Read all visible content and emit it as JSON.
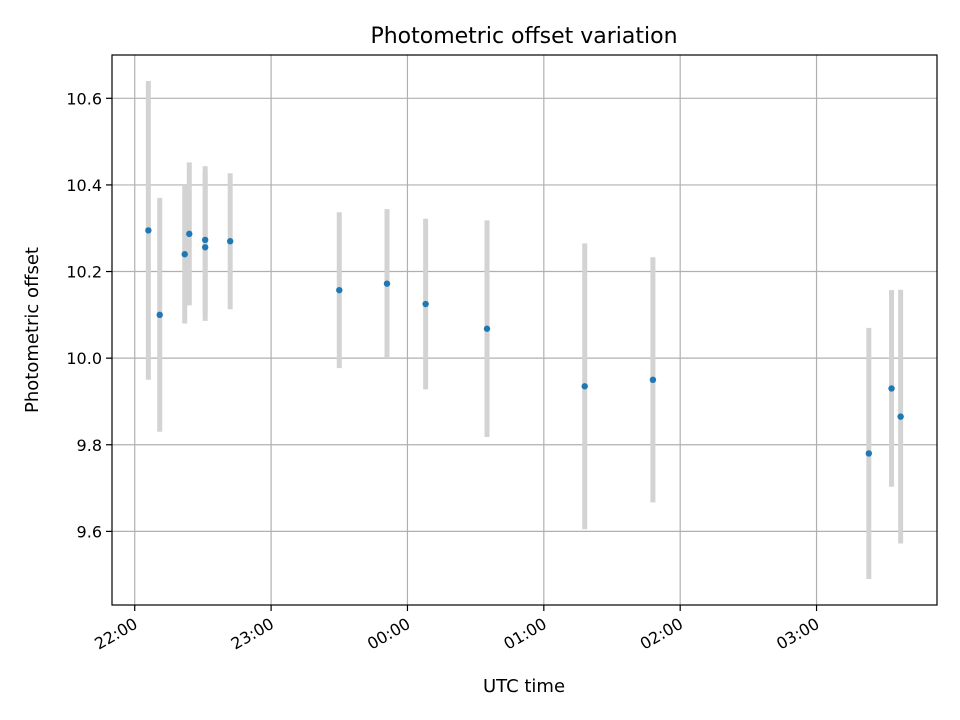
{
  "chart_data": {
    "type": "scatter",
    "title": "Photometric offset variation",
    "xlabel": "UTC time",
    "ylabel": "Photometric offset",
    "x_ticks": [
      "22:00",
      "23:00",
      "00:00",
      "01:00",
      "02:00",
      "03:00"
    ],
    "y_ticks": [
      "9.6",
      "9.8",
      "10.0",
      "10.2",
      "10.4",
      "10.6"
    ],
    "xlim": [
      "21:50",
      "03:53"
    ],
    "ylim": [
      9.43,
      10.7
    ],
    "grid": true,
    "marker_color": "#1f77b4",
    "errorbar_color": "#d3d3d3",
    "points": [
      {
        "t": "22:06",
        "y": 10.295,
        "err": 0.345
      },
      {
        "t": "22:11",
        "y": 10.1,
        "err": 0.27
      },
      {
        "t": "22:22",
        "y": 10.24,
        "err": 0.16
      },
      {
        "t": "22:24",
        "y": 10.287,
        "err": 0.165
      },
      {
        "t": "22:31",
        "y": 10.256,
        "err": 0.17
      },
      {
        "t": "22:31",
        "y": 10.273,
        "err": 0.17
      },
      {
        "t": "22:42",
        "y": 10.27,
        "err": 0.157
      },
      {
        "t": "23:30",
        "y": 10.157,
        "err": 0.18
      },
      {
        "t": "23:51",
        "y": 10.172,
        "err": 0.172
      },
      {
        "t": "00:08",
        "y": 10.125,
        "err": 0.197
      },
      {
        "t": "00:35",
        "y": 10.068,
        "err": 0.25
      },
      {
        "t": "01:18",
        "y": 9.935,
        "err": 0.33
      },
      {
        "t": "01:48",
        "y": 9.95,
        "err": 0.283
      },
      {
        "t": "03:23",
        "y": 9.78,
        "err": 0.29
      },
      {
        "t": "03:33",
        "y": 9.93,
        "err": 0.227
      },
      {
        "t": "03:37",
        "y": 9.865,
        "err": 0.293
      }
    ]
  }
}
